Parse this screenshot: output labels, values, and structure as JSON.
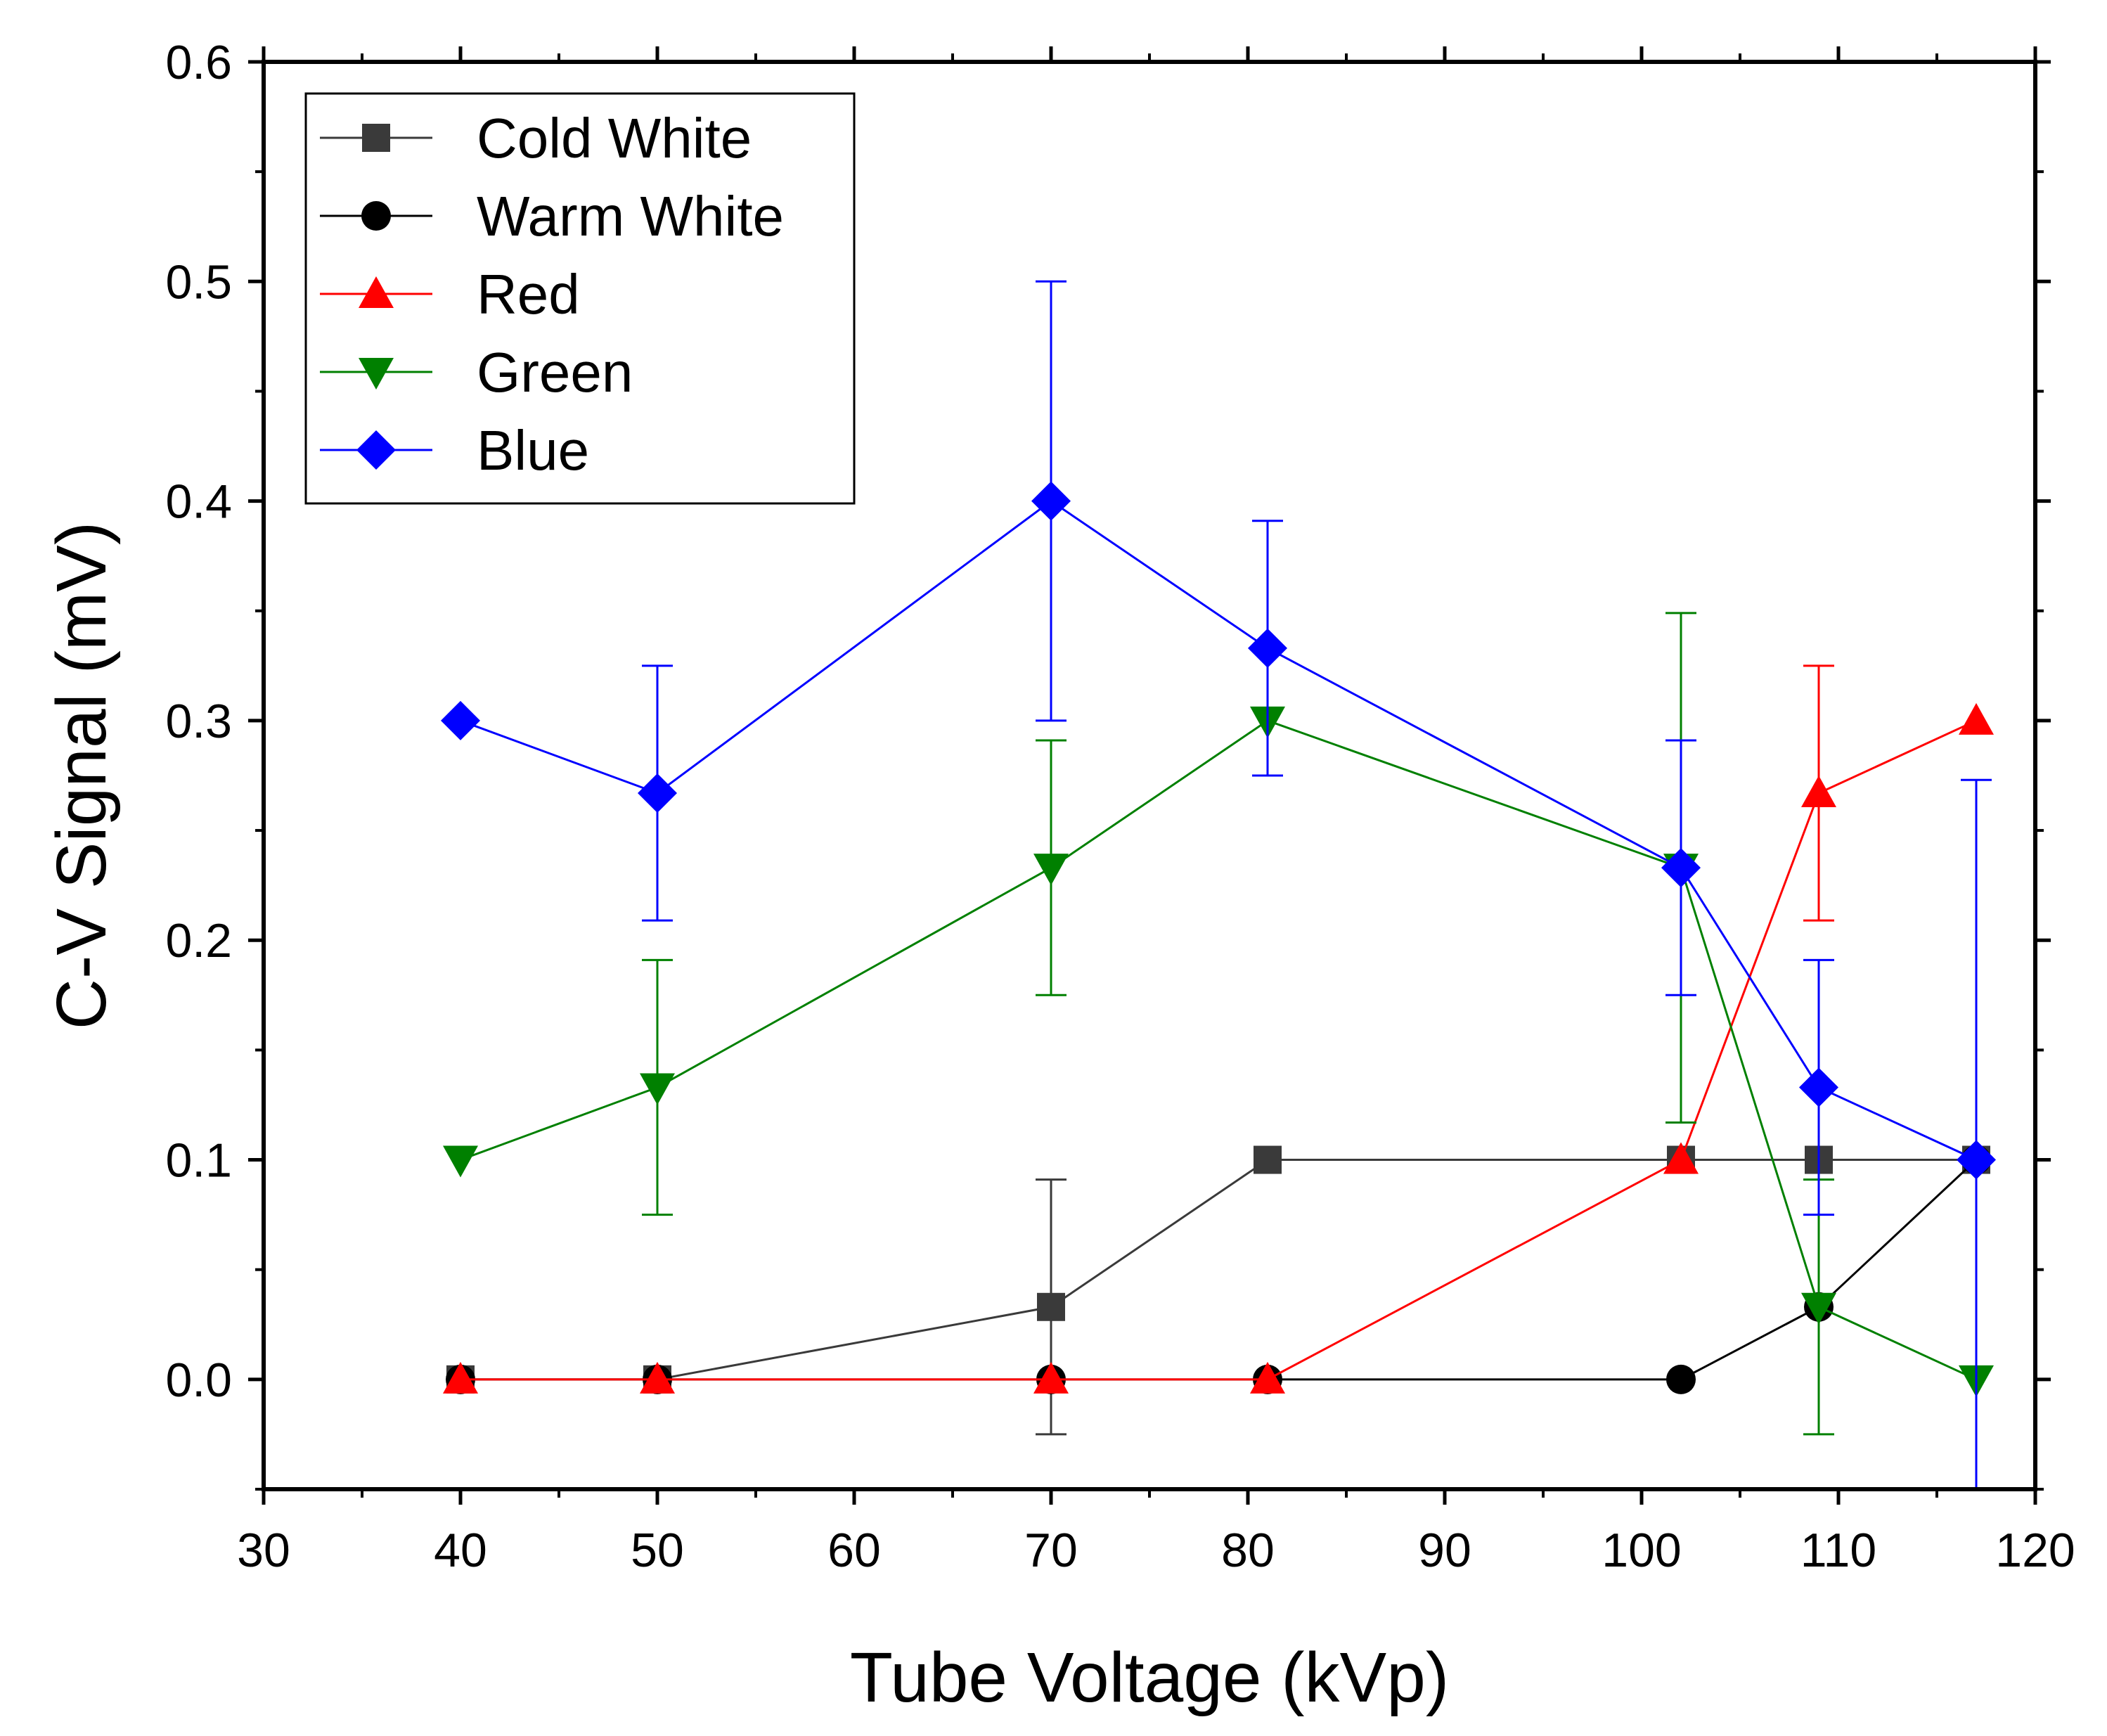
{
  "chart_data": {
    "type": "line",
    "title": "",
    "xlabel": "Tube Voltage (kVp)",
    "ylabel": "C-V Signal (mV)",
    "xlim": [
      30,
      120
    ],
    "ylim": [
      -0.05,
      0.6
    ],
    "xticks": [
      30,
      40,
      50,
      60,
      70,
      80,
      90,
      100,
      110,
      120
    ],
    "xtick_labels": [
      "30",
      "40",
      "50",
      "60",
      "70",
      "80",
      "90",
      "100",
      "110",
      "120"
    ],
    "yticks": [
      0.0,
      0.1,
      0.2,
      0.3,
      0.4,
      0.5,
      0.6
    ],
    "ytick_labels": [
      "0.0",
      "0.1",
      "0.2",
      "0.3",
      "0.4",
      "0.5",
      "0.6"
    ],
    "legend_position": "top-left",
    "grid": false,
    "series": [
      {
        "name": "Cold White",
        "color": "#3a3a3a",
        "marker": "square",
        "x": [
          40,
          50,
          70,
          81,
          102,
          109,
          117
        ],
        "y": [
          0.0,
          0.0,
          0.033,
          0.1,
          0.1,
          0.1,
          0.1
        ],
        "err": [
          0,
          0,
          0.058,
          0,
          0,
          0,
          0
        ]
      },
      {
        "name": "Warm White",
        "color": "#000000",
        "marker": "circle",
        "x": [
          40,
          50,
          70,
          81,
          102,
          109,
          117
        ],
        "y": [
          0.0,
          0.0,
          0.0,
          0.0,
          0.0,
          0.033,
          0.1
        ],
        "err": [
          0,
          0,
          0,
          0,
          0,
          0,
          0
        ]
      },
      {
        "name": "Red",
        "color": "#ff0000",
        "marker": "triangle-up",
        "x": [
          40,
          50,
          70,
          81,
          102,
          109,
          117
        ],
        "y": [
          0.0,
          0.0,
          0.0,
          0.0,
          0.1,
          0.267,
          0.3
        ],
        "err": [
          0,
          0,
          0,
          0,
          0,
          0.058,
          0
        ]
      },
      {
        "name": "Green",
        "color": "#008000",
        "marker": "triangle-down",
        "x": [
          40,
          50,
          70,
          81,
          102,
          109,
          117
        ],
        "y": [
          0.1,
          0.133,
          0.233,
          0.3,
          0.233,
          0.033,
          0.0
        ],
        "err": [
          0,
          0.058,
          0.058,
          0,
          0.116,
          0.058,
          0
        ]
      },
      {
        "name": "Blue",
        "color": "#0000ff",
        "marker": "diamond",
        "x": [
          40,
          50,
          70,
          81,
          102,
          109,
          117
        ],
        "y": [
          0.3,
          0.267,
          0.4,
          0.333,
          0.233,
          0.133,
          0.1
        ],
        "err": [
          0,
          0.058,
          0.1,
          0.058,
          0.058,
          0.058,
          0.173
        ]
      }
    ]
  }
}
